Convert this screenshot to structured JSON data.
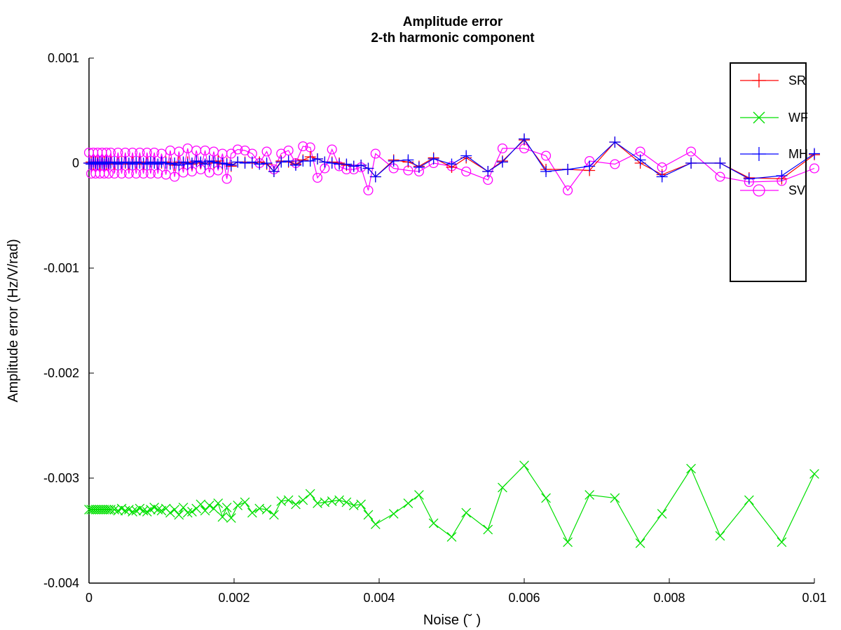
{
  "chart_data": {
    "type": "line",
    "title": "Amplitude error",
    "subtitle": "2-th harmonic component",
    "xlabel": "Noise (˘ )",
    "ylabel": "Amplitude error (Hz/V/rad)",
    "xlim": [
      0,
      0.01
    ],
    "ylim": [
      -0.004,
      0.001
    ],
    "xticks": [
      0,
      0.002,
      0.004,
      0.006,
      0.008,
      0.01
    ],
    "xtick_labels": [
      "0",
      "0.002",
      "0.004",
      "0.006",
      "0.008",
      "0.01"
    ],
    "yticks": [
      -0.004,
      -0.003,
      -0.002,
      -0.001,
      0,
      0.001
    ],
    "ytick_labels": [
      "-0.004",
      "-0.003",
      "-0.002",
      "-0.001",
      "0",
      "0.001"
    ],
    "grid": false,
    "legend_position": "top-right",
    "x": [
      0.0,
      3e-05,
      6e-05,
      9e-05,
      0.00012,
      0.00015,
      0.00018,
      0.00021,
      0.00024,
      0.00027,
      0.0003,
      0.00035,
      0.0004,
      0.00045,
      0.0005,
      0.00055,
      0.0006,
      0.00065,
      0.0007,
      0.00075,
      0.0008,
      0.00085,
      0.0009,
      0.00095,
      0.001,
      0.00106,
      0.00112,
      0.00118,
      0.00124,
      0.0013,
      0.00136,
      0.00142,
      0.00148,
      0.00154,
      0.0016,
      0.00166,
      0.00172,
      0.00178,
      0.00184,
      0.0019,
      0.00196,
      0.00205,
      0.00215,
      0.00225,
      0.00235,
      0.00245,
      0.00255,
      0.00265,
      0.00275,
      0.00285,
      0.00295,
      0.00305,
      0.00315,
      0.00325,
      0.00335,
      0.00345,
      0.00355,
      0.00365,
      0.00375,
      0.00385,
      0.00395,
      0.0042,
      0.0044,
      0.00455,
      0.00475,
      0.005,
      0.0052,
      0.0055,
      0.0057,
      0.006,
      0.0063,
      0.0066,
      0.0069,
      0.00725,
      0.0076,
      0.0079,
      0.0083,
      0.0087,
      0.0091,
      0.00955,
      0.01
    ],
    "series": [
      {
        "name": "SR",
        "color": "#ff0000",
        "marker": "plus",
        "values": [
          0.0,
          1e-05,
          -1e-05,
          1e-05,
          0.0,
          -1e-05,
          0.0,
          1e-05,
          -1e-05,
          0.0,
          1e-05,
          -1e-05,
          0.0,
          1e-05,
          0.0,
          -1e-05,
          1e-05,
          0.0,
          1e-05,
          -1e-05,
          0.0,
          1e-05,
          0.0,
          -1e-05,
          0.0,
          1e-05,
          0.0,
          -2e-05,
          1e-05,
          0.0,
          1e-05,
          -1e-05,
          2e-05,
          0.0,
          -1e-05,
          2e-05,
          0.0,
          2e-05,
          -1e-05,
          0.0,
          -3e-05,
          1e-05,
          1e-05,
          0.0,
          1e-05,
          -1e-05,
          -8e-05,
          2e-05,
          1e-05,
          -1e-05,
          3e-05,
          6e-05,
          4e-05,
          1e-05,
          1e-05,
          0.0,
          -2e-05,
          -3e-05,
          -2e-05,
          -5e-05,
          -0.00013,
          3e-05,
          1e-05,
          -3e-05,
          5e-05,
          -4e-05,
          5e-05,
          -8e-05,
          2e-05,
          0.00022,
          -6e-05,
          -6e-05,
          -7e-05,
          0.0002,
          0.0,
          -0.00011,
          0.0,
          0.0,
          -0.00014,
          -0.00015,
          8e-05
        ]
      },
      {
        "name": "WF",
        "color": "#00e000",
        "marker": "cross",
        "values": [
          -0.0033,
          -0.0033,
          -0.0033,
          -0.0033,
          -0.0033,
          -0.0033,
          -0.0033,
          -0.0033,
          -0.0033,
          -0.0033,
          -0.0033,
          -0.0033,
          -0.00331,
          -0.00329,
          -0.00331,
          -0.0033,
          -0.00332,
          -0.00331,
          -0.00329,
          -0.00331,
          -0.00332,
          -0.0033,
          -0.00328,
          -0.0033,
          -0.00331,
          -0.00329,
          -0.00333,
          -0.0033,
          -0.00335,
          -0.00328,
          -0.00333,
          -0.00332,
          -0.00329,
          -0.00325,
          -0.00331,
          -0.00326,
          -0.00329,
          -0.00324,
          -0.00337,
          -0.00328,
          -0.00338,
          -0.00326,
          -0.00323,
          -0.00333,
          -0.00329,
          -0.0033,
          -0.00335,
          -0.00322,
          -0.00321,
          -0.00325,
          -0.00321,
          -0.00315,
          -0.00324,
          -0.00323,
          -0.00322,
          -0.00321,
          -0.00323,
          -0.00326,
          -0.00325,
          -0.00335,
          -0.00344,
          -0.00334,
          -0.00324,
          -0.00316,
          -0.00343,
          -0.00356,
          -0.00333,
          -0.00349,
          -0.00309,
          -0.00288,
          -0.00319,
          -0.00361,
          -0.00316,
          -0.00319,
          -0.00362,
          -0.00334,
          -0.00291,
          -0.00355,
          -0.00321,
          -0.00361,
          -0.00296
        ]
      },
      {
        "name": "MH",
        "color": "#0000ff",
        "marker": "plus",
        "values": [
          0.0,
          -1e-05,
          1e-05,
          0.0,
          -1e-05,
          1e-05,
          0.0,
          -1e-05,
          1e-05,
          0.0,
          0.0,
          1e-05,
          -1e-05,
          0.0,
          1e-05,
          0.0,
          -1e-05,
          1e-05,
          0.0,
          0.0,
          -1e-05,
          1e-05,
          0.0,
          -1e-05,
          1e-05,
          0.0,
          -1e-05,
          0.0,
          -2e-05,
          1e-05,
          -1e-05,
          0.0,
          2e-05,
          1e-05,
          -1e-05,
          2e-05,
          1e-05,
          0.0,
          0.0,
          -1e-05,
          -2e-05,
          1e-05,
          0.0,
          1e-05,
          -1e-05,
          0.0,
          -8e-05,
          1e-05,
          2e-05,
          -2e-05,
          2e-05,
          2e-05,
          4e-05,
          1e-05,
          0.0,
          -1e-05,
          -1e-05,
          -3e-05,
          -2e-05,
          -5e-05,
          -0.00013,
          2e-05,
          3e-05,
          -4e-05,
          4e-05,
          -1e-05,
          7e-05,
          -8e-05,
          1e-05,
          0.00023,
          -8e-05,
          -6e-05,
          -3e-05,
          0.0002,
          3e-05,
          -0.00013,
          0.0,
          0.0,
          -0.00015,
          -0.00012,
          9e-05
        ]
      },
      {
        "name": "SV",
        "color": "#ff00ff",
        "marker": "circle",
        "values": [
          0.0001,
          -0.0001,
          0.0001,
          -0.0001,
          0.0001,
          -0.0001,
          0.0001,
          -0.0001,
          0.0001,
          -0.0001,
          0.0001,
          -0.0001,
          0.0001,
          -0.0001,
          0.0001,
          -0.0001,
          0.0001,
          -0.0001,
          0.0001,
          -0.0001,
          0.0001,
          -0.0001,
          0.0001,
          -0.0001,
          9e-05,
          -0.00011,
          0.00012,
          -0.00013,
          0.00011,
          -9e-05,
          0.00014,
          -8e-05,
          0.00012,
          -6e-05,
          0.00012,
          -9e-05,
          0.00011,
          -7e-05,
          9e-05,
          -0.00015,
          9e-05,
          0.00013,
          0.00012,
          9e-05,
          0.0,
          0.00011,
          -6e-05,
          9e-05,
          0.00012,
          0.0,
          0.00016,
          0.00015,
          -0.00014,
          -5e-05,
          0.00013,
          -3e-05,
          -6e-05,
          -6e-05,
          -4e-05,
          -0.00026,
          9e-05,
          -5e-05,
          -7e-05,
          -8e-05,
          0.0,
          -3e-05,
          -8e-05,
          -0.00016,
          0.00014,
          0.00014,
          7e-05,
          -0.00026,
          2e-05,
          -1e-05,
          0.00011,
          -4e-05,
          0.00011,
          -0.00013,
          -0.00018,
          -0.00017,
          -5e-05
        ]
      }
    ]
  }
}
